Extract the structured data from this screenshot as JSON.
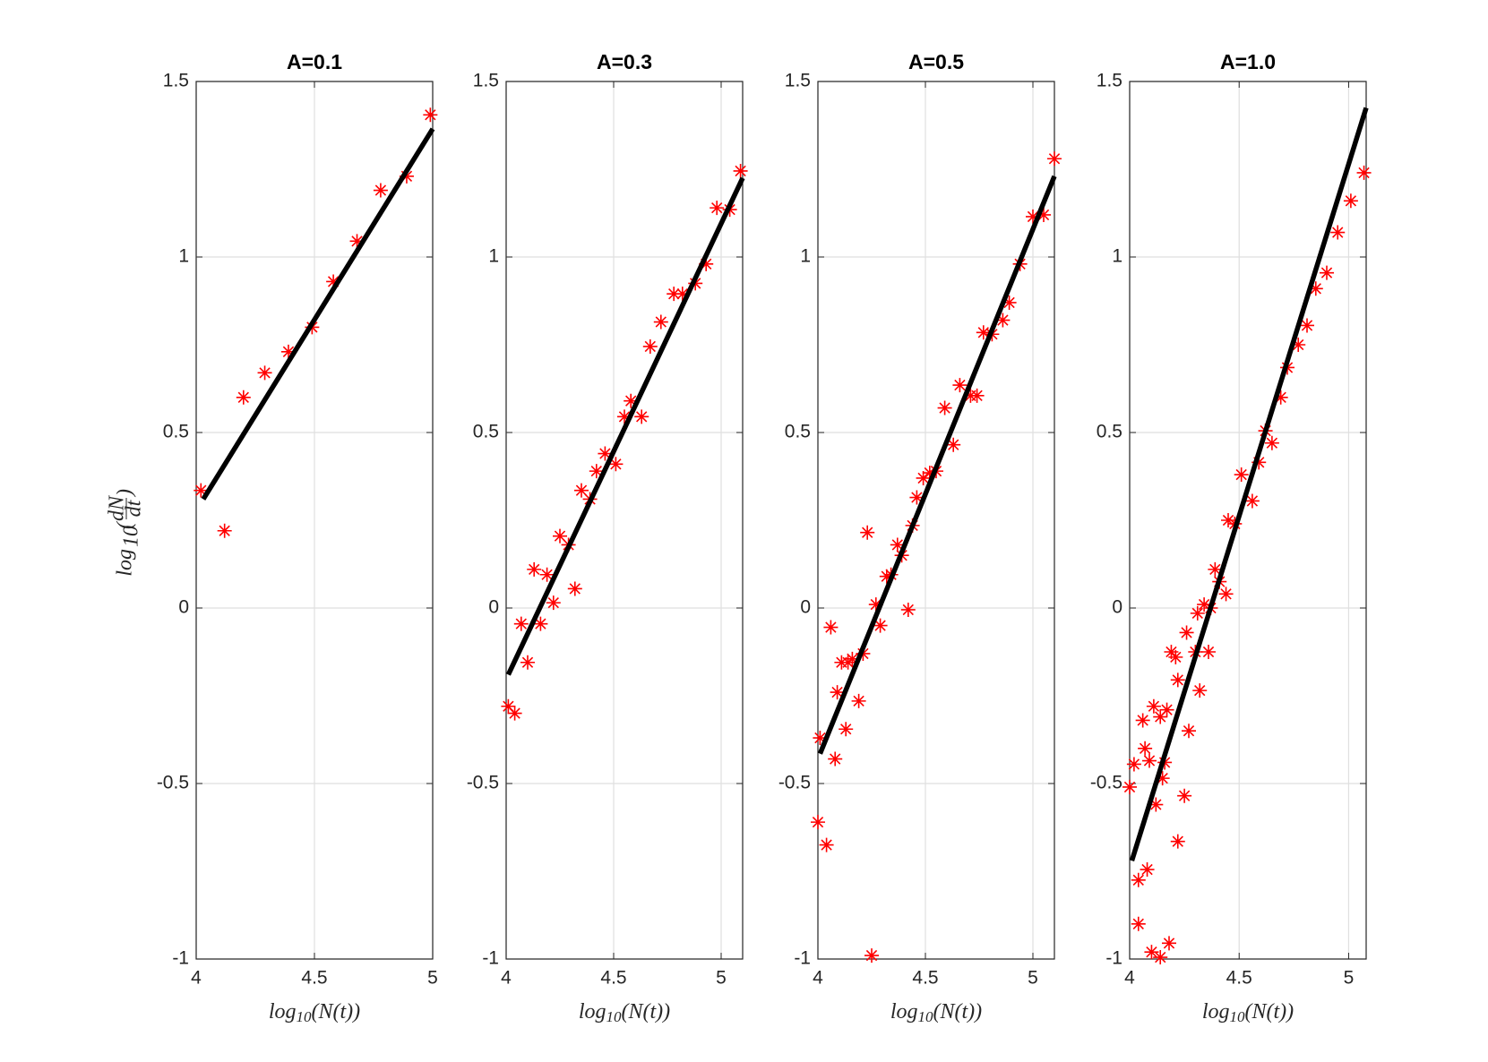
{
  "chart_data": [
    {
      "type": "scatter",
      "title": "A=0.1",
      "xlabel": {
        "base": "log",
        "sub": "10",
        "arg": "(N(t))"
      },
      "ylabel": {
        "base": "log",
        "sub": "10",
        "num": "dN",
        "den": "dt"
      },
      "xlim": [
        4,
        5
      ],
      "ylim": [
        -1,
        1.5
      ],
      "xticks": [
        4,
        4.5,
        5
      ],
      "yticks": [
        -1,
        -0.5,
        0,
        0.5,
        1,
        1.5
      ],
      "grid": true,
      "series": [
        {
          "mode": "markers",
          "color": "#ff0000",
          "x": [
            4.02,
            4.12,
            4.2,
            4.29,
            4.39,
            4.49,
            4.58,
            4.68,
            4.78,
            4.89,
            4.99
          ],
          "values": [
            0.335,
            0.22,
            0.6,
            0.67,
            0.73,
            0.8,
            0.93,
            1.045,
            1.19,
            1.23,
            1.405
          ]
        },
        {
          "mode": "line",
          "color": "#000000",
          "x": [
            4.03,
            5.0
          ],
          "values": [
            0.31,
            1.365
          ]
        }
      ]
    },
    {
      "type": "scatter",
      "title": "A=0.3",
      "xlabel": {
        "base": "log",
        "sub": "10",
        "arg": "(N(t))"
      },
      "xlim": [
        4,
        5.1
      ],
      "ylim": [
        -1,
        1.5
      ],
      "xticks": [
        4,
        4.5,
        5
      ],
      "yticks": [
        -1,
        -0.5,
        0,
        0.5,
        1,
        1.5
      ],
      "grid": true,
      "series": [
        {
          "mode": "markers",
          "color": "#ff0000",
          "x": [
            4.01,
            4.04,
            4.07,
            4.1,
            4.13,
            4.16,
            4.19,
            4.22,
            4.25,
            4.29,
            4.32,
            4.35,
            4.39,
            4.42,
            4.46,
            4.51,
            4.55,
            4.58,
            4.63,
            4.67,
            4.72,
            4.78,
            4.82,
            4.88,
            4.93,
            4.98,
            5.04,
            5.09
          ],
          "values": [
            -0.28,
            -0.3,
            -0.045,
            -0.155,
            0.11,
            -0.045,
            0.095,
            0.015,
            0.205,
            0.18,
            0.055,
            0.335,
            0.31,
            0.39,
            0.44,
            0.41,
            0.545,
            0.59,
            0.545,
            0.745,
            0.815,
            0.895,
            0.895,
            0.925,
            0.98,
            1.14,
            1.135,
            1.245
          ]
        },
        {
          "mode": "line",
          "color": "#000000",
          "x": [
            4.01,
            5.1
          ],
          "values": [
            -0.19,
            1.225
          ]
        }
      ]
    },
    {
      "type": "scatter",
      "title": "A=0.5",
      "xlabel": {
        "base": "log",
        "sub": "10",
        "arg": "(N(t))"
      },
      "xlim": [
        4,
        5.1
      ],
      "ylim": [
        -1,
        1.5
      ],
      "xticks": [
        4,
        4.5,
        5
      ],
      "yticks": [
        -1,
        -0.5,
        0,
        0.5,
        1,
        1.5
      ],
      "grid": true,
      "series": [
        {
          "mode": "markers",
          "color": "#ff0000",
          "x": [
            4.0,
            4.04,
            4.01,
            4.06,
            4.08,
            4.09,
            4.11,
            4.13,
            4.14,
            4.16,
            4.19,
            4.21,
            4.23,
            4.25,
            4.27,
            4.29,
            4.32,
            4.34,
            4.37,
            4.39,
            4.42,
            4.44,
            4.46,
            4.49,
            4.52,
            4.55,
            4.59,
            4.63,
            4.66,
            4.71,
            4.74,
            4.77,
            4.81,
            4.86,
            4.89,
            4.94,
            5.0,
            5.05,
            5.1
          ],
          "values": [
            -0.61,
            -0.675,
            -0.37,
            -0.055,
            -0.43,
            -0.24,
            -0.155,
            -0.345,
            -0.155,
            -0.145,
            -0.265,
            -0.13,
            0.215,
            -0.99,
            0.01,
            -0.05,
            0.09,
            0.095,
            0.18,
            0.15,
            -0.005,
            0.235,
            0.315,
            0.37,
            0.385,
            0.39,
            0.57,
            0.465,
            0.635,
            0.605,
            0.605,
            0.785,
            0.78,
            0.82,
            0.87,
            0.98,
            1.115,
            1.12,
            1.28
          ]
        },
        {
          "mode": "line",
          "color": "#000000",
          "x": [
            4.01,
            5.1
          ],
          "values": [
            -0.415,
            1.23
          ]
        }
      ]
    },
    {
      "type": "scatter",
      "title": "A=1.0",
      "xlabel": {
        "base": "log",
        "sub": "10",
        "arg": "(N(t))"
      },
      "xlim": [
        4,
        5.08
      ],
      "ylim": [
        -1,
        1.5
      ],
      "xticks": [
        4,
        4.5,
        5
      ],
      "yticks": [
        -1,
        -0.5,
        0,
        0.5,
        1,
        1.5
      ],
      "grid": true,
      "series": [
        {
          "mode": "markers",
          "color": "#ff0000",
          "x": [
            4.0,
            4.02,
            4.04,
            4.04,
            4.06,
            4.07,
            4.08,
            4.09,
            4.1,
            4.11,
            4.12,
            4.14,
            4.14,
            4.15,
            4.16,
            4.17,
            4.18,
            4.19,
            4.21,
            4.22,
            4.22,
            4.25,
            4.26,
            4.27,
            4.3,
            4.31,
            4.32,
            4.34,
            4.36,
            4.37,
            4.39,
            4.41,
            4.44,
            4.45,
            4.48,
            4.51,
            4.56,
            4.59,
            4.62,
            4.65,
            4.69,
            4.72,
            4.77,
            4.81,
            4.85,
            4.9,
            4.95,
            5.01,
            5.07
          ],
          "values": [
            -0.51,
            -0.445,
            -0.775,
            -0.9,
            -0.32,
            -0.4,
            -0.745,
            -0.435,
            -0.98,
            -0.28,
            -0.56,
            -0.31,
            -0.995,
            -0.485,
            -0.44,
            -0.29,
            -0.955,
            -0.125,
            -0.14,
            -0.205,
            -0.665,
            -0.535,
            -0.07,
            -0.35,
            -0.125,
            -0.015,
            -0.235,
            0.01,
            -0.125,
            0.0,
            0.11,
            0.075,
            0.04,
            0.25,
            0.24,
            0.38,
            0.305,
            0.415,
            0.505,
            0.47,
            0.6,
            0.685,
            0.75,
            0.805,
            0.91,
            0.955,
            1.07,
            1.16,
            1.24
          ]
        },
        {
          "mode": "line",
          "color": "#000000",
          "x": [
            4.01,
            5.08
          ],
          "values": [
            -0.72,
            1.425
          ]
        }
      ]
    }
  ]
}
